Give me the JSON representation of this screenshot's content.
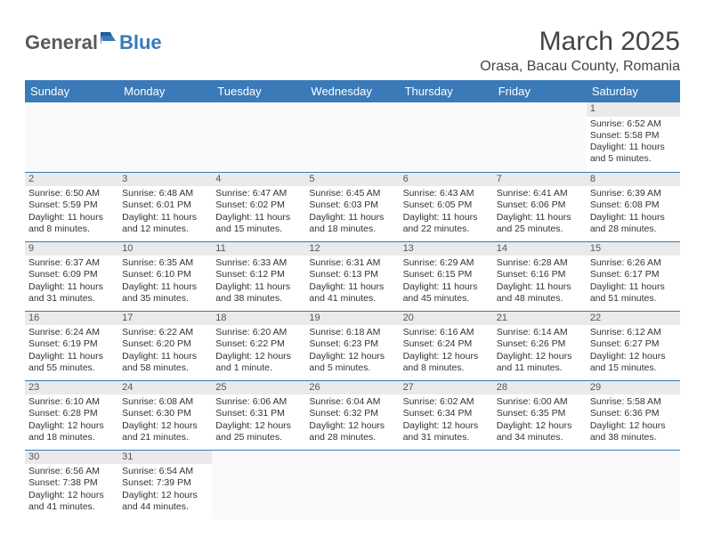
{
  "logo": {
    "general": "General",
    "blue": "Blue"
  },
  "title": "March 2025",
  "location": "Orasa, Bacau County, Romania",
  "weekdays": [
    "Sunday",
    "Monday",
    "Tuesday",
    "Wednesday",
    "Thursday",
    "Friday",
    "Saturday"
  ],
  "colors": {
    "header_bg": "#3a7ab8",
    "header_text": "#ffffff",
    "daynum_bg": "#eaeaea",
    "border": "#3a7ab8",
    "logo_gray": "#5a5a5a"
  },
  "weeks": [
    [
      null,
      null,
      null,
      null,
      null,
      null,
      {
        "n": "1",
        "sr": "Sunrise: 6:52 AM",
        "ss": "Sunset: 5:58 PM",
        "dl": "Daylight: 11 hours and 5 minutes."
      }
    ],
    [
      {
        "n": "2",
        "sr": "Sunrise: 6:50 AM",
        "ss": "Sunset: 5:59 PM",
        "dl": "Daylight: 11 hours and 8 minutes."
      },
      {
        "n": "3",
        "sr": "Sunrise: 6:48 AM",
        "ss": "Sunset: 6:01 PM",
        "dl": "Daylight: 11 hours and 12 minutes."
      },
      {
        "n": "4",
        "sr": "Sunrise: 6:47 AM",
        "ss": "Sunset: 6:02 PM",
        "dl": "Daylight: 11 hours and 15 minutes."
      },
      {
        "n": "5",
        "sr": "Sunrise: 6:45 AM",
        "ss": "Sunset: 6:03 PM",
        "dl": "Daylight: 11 hours and 18 minutes."
      },
      {
        "n": "6",
        "sr": "Sunrise: 6:43 AM",
        "ss": "Sunset: 6:05 PM",
        "dl": "Daylight: 11 hours and 22 minutes."
      },
      {
        "n": "7",
        "sr": "Sunrise: 6:41 AM",
        "ss": "Sunset: 6:06 PM",
        "dl": "Daylight: 11 hours and 25 minutes."
      },
      {
        "n": "8",
        "sr": "Sunrise: 6:39 AM",
        "ss": "Sunset: 6:08 PM",
        "dl": "Daylight: 11 hours and 28 minutes."
      }
    ],
    [
      {
        "n": "9",
        "sr": "Sunrise: 6:37 AM",
        "ss": "Sunset: 6:09 PM",
        "dl": "Daylight: 11 hours and 31 minutes."
      },
      {
        "n": "10",
        "sr": "Sunrise: 6:35 AM",
        "ss": "Sunset: 6:10 PM",
        "dl": "Daylight: 11 hours and 35 minutes."
      },
      {
        "n": "11",
        "sr": "Sunrise: 6:33 AM",
        "ss": "Sunset: 6:12 PM",
        "dl": "Daylight: 11 hours and 38 minutes."
      },
      {
        "n": "12",
        "sr": "Sunrise: 6:31 AM",
        "ss": "Sunset: 6:13 PM",
        "dl": "Daylight: 11 hours and 41 minutes."
      },
      {
        "n": "13",
        "sr": "Sunrise: 6:29 AM",
        "ss": "Sunset: 6:15 PM",
        "dl": "Daylight: 11 hours and 45 minutes."
      },
      {
        "n": "14",
        "sr": "Sunrise: 6:28 AM",
        "ss": "Sunset: 6:16 PM",
        "dl": "Daylight: 11 hours and 48 minutes."
      },
      {
        "n": "15",
        "sr": "Sunrise: 6:26 AM",
        "ss": "Sunset: 6:17 PM",
        "dl": "Daylight: 11 hours and 51 minutes."
      }
    ],
    [
      {
        "n": "16",
        "sr": "Sunrise: 6:24 AM",
        "ss": "Sunset: 6:19 PM",
        "dl": "Daylight: 11 hours and 55 minutes."
      },
      {
        "n": "17",
        "sr": "Sunrise: 6:22 AM",
        "ss": "Sunset: 6:20 PM",
        "dl": "Daylight: 11 hours and 58 minutes."
      },
      {
        "n": "18",
        "sr": "Sunrise: 6:20 AM",
        "ss": "Sunset: 6:22 PM",
        "dl": "Daylight: 12 hours and 1 minute."
      },
      {
        "n": "19",
        "sr": "Sunrise: 6:18 AM",
        "ss": "Sunset: 6:23 PM",
        "dl": "Daylight: 12 hours and 5 minutes."
      },
      {
        "n": "20",
        "sr": "Sunrise: 6:16 AM",
        "ss": "Sunset: 6:24 PM",
        "dl": "Daylight: 12 hours and 8 minutes."
      },
      {
        "n": "21",
        "sr": "Sunrise: 6:14 AM",
        "ss": "Sunset: 6:26 PM",
        "dl": "Daylight: 12 hours and 11 minutes."
      },
      {
        "n": "22",
        "sr": "Sunrise: 6:12 AM",
        "ss": "Sunset: 6:27 PM",
        "dl": "Daylight: 12 hours and 15 minutes."
      }
    ],
    [
      {
        "n": "23",
        "sr": "Sunrise: 6:10 AM",
        "ss": "Sunset: 6:28 PM",
        "dl": "Daylight: 12 hours and 18 minutes."
      },
      {
        "n": "24",
        "sr": "Sunrise: 6:08 AM",
        "ss": "Sunset: 6:30 PM",
        "dl": "Daylight: 12 hours and 21 minutes."
      },
      {
        "n": "25",
        "sr": "Sunrise: 6:06 AM",
        "ss": "Sunset: 6:31 PM",
        "dl": "Daylight: 12 hours and 25 minutes."
      },
      {
        "n": "26",
        "sr": "Sunrise: 6:04 AM",
        "ss": "Sunset: 6:32 PM",
        "dl": "Daylight: 12 hours and 28 minutes."
      },
      {
        "n": "27",
        "sr": "Sunrise: 6:02 AM",
        "ss": "Sunset: 6:34 PM",
        "dl": "Daylight: 12 hours and 31 minutes."
      },
      {
        "n": "28",
        "sr": "Sunrise: 6:00 AM",
        "ss": "Sunset: 6:35 PM",
        "dl": "Daylight: 12 hours and 34 minutes."
      },
      {
        "n": "29",
        "sr": "Sunrise: 5:58 AM",
        "ss": "Sunset: 6:36 PM",
        "dl": "Daylight: 12 hours and 38 minutes."
      }
    ],
    [
      {
        "n": "30",
        "sr": "Sunrise: 6:56 AM",
        "ss": "Sunset: 7:38 PM",
        "dl": "Daylight: 12 hours and 41 minutes."
      },
      {
        "n": "31",
        "sr": "Sunrise: 6:54 AM",
        "ss": "Sunset: 7:39 PM",
        "dl": "Daylight: 12 hours and 44 minutes."
      },
      null,
      null,
      null,
      null,
      null
    ]
  ]
}
